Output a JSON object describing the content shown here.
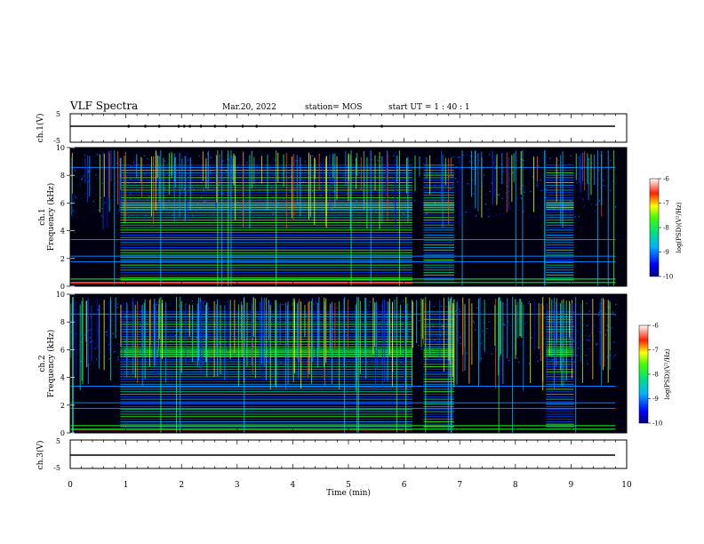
{
  "header": {
    "title": "VLF Spectra",
    "date": "Mar.20, 2022",
    "station": "station= MOS",
    "start": "start UT =  1 : 40 : 1"
  },
  "chart_data": [
    {
      "type": "line",
      "name_label": "ch.1(V)",
      "ylim": [
        -5,
        5
      ],
      "yticks": [
        "5",
        "-5"
      ],
      "description_values": "voltage trace near 0 V",
      "x": [
        0,
        10
      ],
      "values": [
        0,
        0
      ]
    },
    {
      "type": "heatmap",
      "ylabel": "ch.1\nFrequency (kHz)",
      "ylabel_line1": "ch.1",
      "ylabel_line2": "Frequency (kHz)",
      "ylim": [
        0,
        10
      ],
      "yticks": [
        "0",
        "2",
        "4",
        "6",
        "8",
        "10"
      ],
      "colorbar": {
        "label": "log(PSD)(V²/Hz)",
        "ticks": [
          "-6",
          "-7",
          "-8",
          "-9",
          "-10"
        ],
        "range": [
          -10,
          -6
        ]
      },
      "active_segments_min": [
        [
          0.9,
          6.15
        ],
        [
          6.35,
          6.9
        ],
        [
          8.55,
          9.05
        ]
      ]
    },
    {
      "type": "heatmap",
      "ylabel_line1": "ch.2",
      "ylabel_line2": "Frequency (kHz)",
      "ylim": [
        0,
        10
      ],
      "yticks": [
        "0",
        "2",
        "4",
        "6",
        "8",
        "10"
      ],
      "colorbar": {
        "label": "log(PSD)(V²/Hz)",
        "ticks": [
          "-6",
          "-7",
          "-8",
          "-9",
          "-10"
        ],
        "range": [
          -10,
          -6
        ]
      },
      "active_segments_min": [
        [
          0.9,
          6.15
        ],
        [
          6.35,
          6.9
        ],
        [
          8.55,
          9.05
        ]
      ]
    },
    {
      "type": "line",
      "name_label": "ch.3(V)",
      "ylim": [
        -5,
        5
      ],
      "yticks": [
        "5",
        "-5"
      ],
      "x": [
        0,
        10
      ],
      "values": [
        0,
        0
      ]
    }
  ],
  "xaxis": {
    "label": "Time (min)",
    "ticks": [
      "0",
      "1",
      "2",
      "3",
      "4",
      "5",
      "6",
      "7",
      "8",
      "9",
      "10"
    ],
    "xlim": [
      0,
      10
    ]
  },
  "colors": {
    "background": "#000010",
    "trace": "#000000"
  }
}
